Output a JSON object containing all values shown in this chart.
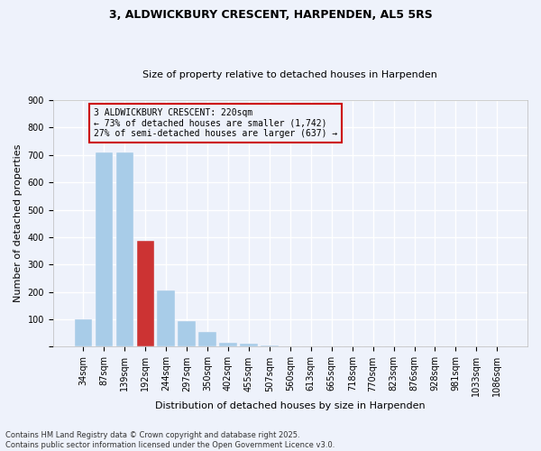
{
  "title1": "3, ALDWICKBURY CRESCENT, HARPENDEN, AL5 5RS",
  "title2": "Size of property relative to detached houses in Harpenden",
  "xlabel": "Distribution of detached houses by size in Harpenden",
  "ylabel": "Number of detached properties",
  "categories": [
    "34sqm",
    "87sqm",
    "139sqm",
    "192sqm",
    "244sqm",
    "297sqm",
    "350sqm",
    "402sqm",
    "455sqm",
    "507sqm",
    "560sqm",
    "613sqm",
    "665sqm",
    "718sqm",
    "770sqm",
    "823sqm",
    "876sqm",
    "928sqm",
    "981sqm",
    "1033sqm",
    "1086sqm"
  ],
  "values": [
    100,
    710,
    710,
    385,
    205,
    95,
    55,
    15,
    10,
    5,
    3,
    2,
    2,
    2,
    1,
    1,
    1,
    1,
    1,
    0,
    0
  ],
  "highlight_index": 3,
  "bar_color_normal": "#a8cce8",
  "bar_color_highlight": "#cc3333",
  "annotation_line1": "3 ALDWICKBURY CRESCENT: 220sqm",
  "annotation_line2": "← 73% of detached houses are smaller (1,742)",
  "annotation_line3": "27% of semi-detached houses are larger (637) →",
  "annotation_box_edgecolor": "#cc0000",
  "ylim": [
    0,
    900
  ],
  "yticks": [
    0,
    100,
    200,
    300,
    400,
    500,
    600,
    700,
    800,
    900
  ],
  "footnote1": "Contains HM Land Registry data © Crown copyright and database right 2025.",
  "footnote2": "Contains public sector information licensed under the Open Government Licence v3.0.",
  "background_color": "#eef2fb",
  "grid_color": "#ffffff",
  "title1_fontsize": 9,
  "title2_fontsize": 8,
  "ann_fontsize": 7,
  "xlabel_fontsize": 8,
  "ylabel_fontsize": 8,
  "tick_fontsize": 7
}
